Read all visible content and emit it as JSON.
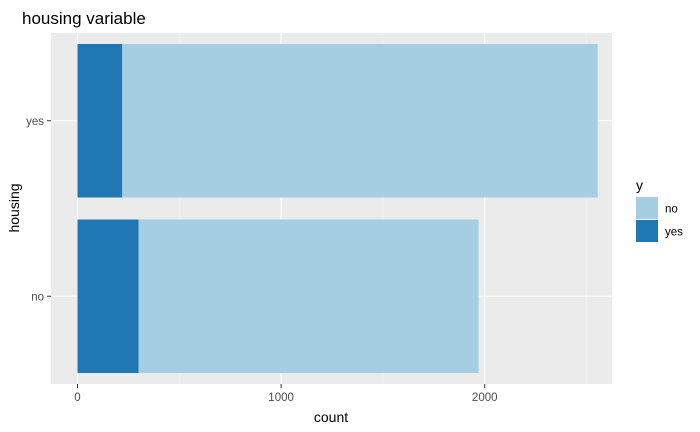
{
  "colors": {
    "panel": "#ebebeb",
    "grid_major": "#ffffff",
    "grid_minor": "#f4f4f4",
    "tick": "#333333"
  },
  "chart_data": {
    "type": "bar",
    "orientation": "horizontal",
    "stacked": true,
    "title": "housing variable",
    "xlabel": "count",
    "ylabel": "housing",
    "categories": [
      "no",
      "yes"
    ],
    "series": [
      {
        "name": "no",
        "color": "#a6cee3",
        "values": [
          1670,
          2335
        ]
      },
      {
        "name": "yes",
        "color": "#1f78b4",
        "values": [
          300,
          220
        ]
      }
    ],
    "stack_order": [
      "yes",
      "no"
    ],
    "xlim": [
      -130,
      2625
    ],
    "xticks": [
      0,
      1000,
      2000
    ],
    "xtick_labels": [
      "0",
      "1000",
      "2000"
    ],
    "legend": {
      "title": "y",
      "position": "right",
      "items": [
        {
          "label": "no",
          "color": "#a6cee3"
        },
        {
          "label": "yes",
          "color": "#1f78b4"
        }
      ]
    },
    "grid": true
  }
}
